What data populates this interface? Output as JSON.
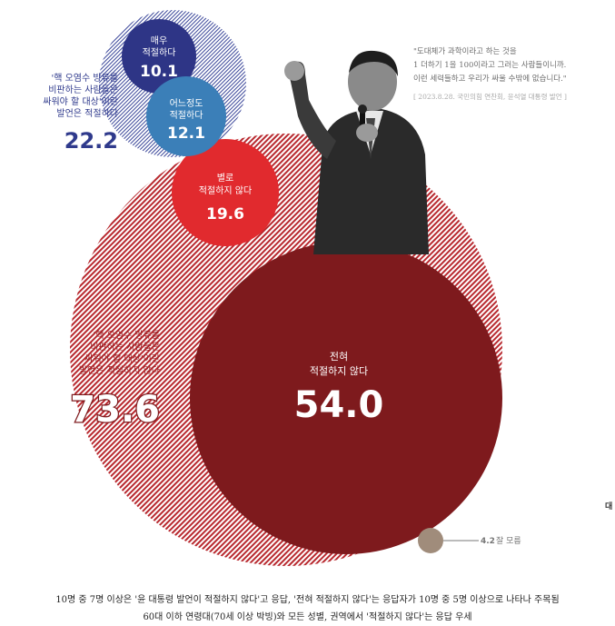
{
  "chart_data": {
    "type": "bubble",
    "groups": [
      {
        "label": "'핵 오염수 방류를 비판하는 사람들은 싸워야 할 대상'이란 발언은 적절하다",
        "label_lines": [
          "'핵 오염수 방류를",
          "비판하는 사람들은",
          "싸워야 할 대상'이란",
          "발언은 적절하다"
        ],
        "total": "22.2",
        "color": "#2f3a8c"
      },
      {
        "label": "'핵 오염수 방류를 비판하는 사람들은 싸워야 할 대상'이란 발언은 적절하지 않다",
        "label_lines": [
          "'핵 오염수 방류를",
          "비판하는 사람들은",
          "싸워야 할 대상'이란",
          "발언은 적절하지 않다"
        ],
        "total": "73.6",
        "color": "#b8292f"
      }
    ],
    "items": [
      {
        "label_lines": [
          "매우",
          "적절하다"
        ],
        "value": 10.1,
        "display": "10.1",
        "color": "#2e3586"
      },
      {
        "label_lines": [
          "어느정도",
          "적절하다"
        ],
        "value": 12.1,
        "display": "12.1",
        "color": "#3b7fb8"
      },
      {
        "label_lines": [
          "별로",
          "적절하지 않다"
        ],
        "value": 19.6,
        "display": "19.6",
        "color": "#e12a2e"
      },
      {
        "label_lines": [
          "전혀",
          "적절하지 않다"
        ],
        "value": 54.0,
        "display": "54.0",
        "color": "#7e1a1d"
      },
      {
        "label": "잘 모름",
        "value": 4.2,
        "display": "4.2",
        "color": "#a08c7b"
      }
    ]
  },
  "quote": {
    "lines": [
      "\"도대체가 과학이라고 하는 것을",
      "1 더하기 1을 100이라고 그러는 사람들이니까.",
      "이런 세력들하고 우리가 싸울 수밖에 없습니다.\""
    ],
    "source": "[ 2023.8.28. 국민의힘 연찬회, 윤석열 대통령 발언 ]"
  },
  "caption": {
    "line1": "10명 중 7명 이상은 '윤 대통령 발언이 적절하지 않다'고 응답, '전혀 적절하지 않다'는 응답자가 10명 중 5명 이상으로 나타나 주목됨",
    "line2": "60대 이하 연령대(70세 이상 박빙)와 모든 성별, 권역에서 '적절하지 않다'는 응답 우세"
  },
  "edge_text": "대"
}
